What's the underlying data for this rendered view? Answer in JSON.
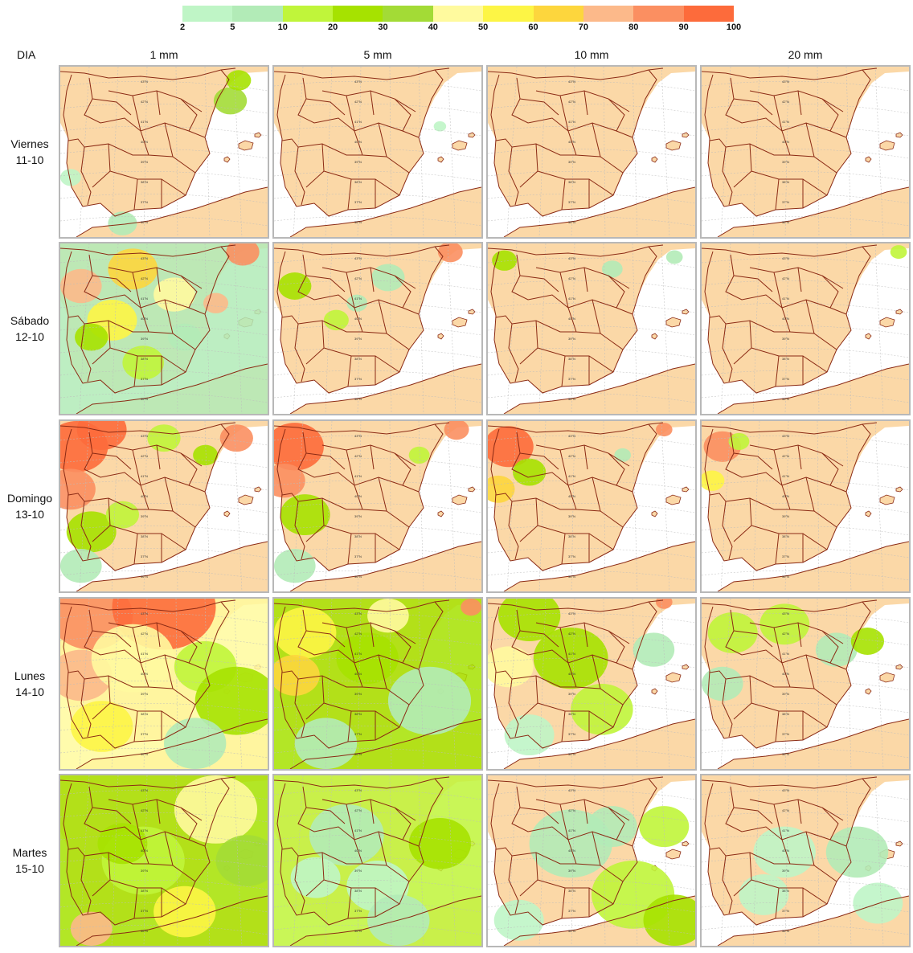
{
  "legend": {
    "colors": [
      "#bff5c6",
      "#b2ebb7",
      "#c0f53a",
      "#a6e200",
      "#a3db36",
      "#fffa9e",
      "#fdf545",
      "#fdd63d",
      "#fcb98a",
      "#fb8f61",
      "#fd6b3b"
    ],
    "ticks": [
      "2",
      "5",
      "10",
      "20",
      "30",
      "40",
      "50",
      "60",
      "70",
      "80",
      "90",
      "100"
    ]
  },
  "header": {
    "corner": "DIA"
  },
  "columns": [
    {
      "label": "1 mm"
    },
    {
      "label": "5 mm"
    },
    {
      "label": "10 mm"
    },
    {
      "label": "20 mm"
    }
  ],
  "rows": [
    {
      "day": "Viernes",
      "date": "11-10"
    },
    {
      "day": "Sábado",
      "date": "12-10"
    },
    {
      "day": "Domingo",
      "date": "13-10"
    },
    {
      "day": "Lunes",
      "date": "14-10"
    },
    {
      "day": "Martes",
      "date": "15-10"
    }
  ],
  "map": {
    "land_color": "#fbd8a7",
    "border_color": "#8b2a14",
    "grid_color": "#bdbdbd",
    "lat_labels": [
      "43°N",
      "42°N",
      "41°N",
      "40°N",
      "39°N",
      "38°N",
      "37°N",
      "36°N"
    ]
  },
  "cells": [
    [
      {
        "base": 0,
        "blobs": [
          [
            0.82,
            0.2,
            0.08,
            5
          ],
          [
            0.86,
            0.08,
            0.06,
            4
          ],
          [
            0.3,
            0.92,
            0.07,
            2
          ],
          [
            0.05,
            0.65,
            0.05,
            1
          ]
        ]
      },
      {
        "base": 0,
        "blobs": [
          [
            0.8,
            0.35,
            0.03,
            1
          ]
        ]
      },
      {
        "base": 0,
        "blobs": []
      },
      {
        "base": 0,
        "blobs": []
      }
    ],
    [
      {
        "base": 2,
        "blobs": [
          [
            0.1,
            0.25,
            0.1,
            9
          ],
          [
            0.35,
            0.15,
            0.12,
            8
          ],
          [
            0.25,
            0.45,
            0.12,
            7
          ],
          [
            0.55,
            0.3,
            0.1,
            6
          ],
          [
            0.75,
            0.35,
            0.06,
            9
          ],
          [
            0.88,
            0.05,
            0.08,
            10
          ],
          [
            0.4,
            0.7,
            0.1,
            3
          ],
          [
            0.15,
            0.55,
            0.08,
            4
          ],
          [
            0.6,
            0.55,
            0.08,
            2
          ]
        ]
      },
      {
        "base": 0,
        "blobs": [
          [
            0.1,
            0.25,
            0.08,
            4
          ],
          [
            0.3,
            0.45,
            0.06,
            3
          ],
          [
            0.55,
            0.2,
            0.08,
            2
          ],
          [
            0.85,
            0.05,
            0.06,
            10
          ],
          [
            0.4,
            0.35,
            0.05,
            2
          ]
        ]
      },
      {
        "base": 0,
        "blobs": [
          [
            0.08,
            0.1,
            0.06,
            4
          ],
          [
            0.6,
            0.15,
            0.05,
            2
          ],
          [
            0.9,
            0.08,
            0.04,
            2
          ]
        ]
      },
      {
        "base": 0,
        "blobs": [
          [
            0.95,
            0.05,
            0.04,
            3
          ]
        ]
      }
    ],
    [
      {
        "base": 0,
        "blobs": [
          [
            0.08,
            0.15,
            0.15,
            11
          ],
          [
            0.2,
            0.05,
            0.12,
            11
          ],
          [
            0.05,
            0.4,
            0.12,
            10
          ],
          [
            0.15,
            0.65,
            0.12,
            4
          ],
          [
            0.3,
            0.55,
            0.08,
            3
          ],
          [
            0.85,
            0.1,
            0.08,
            10
          ],
          [
            0.7,
            0.2,
            0.06,
            4
          ],
          [
            0.5,
            0.1,
            0.08,
            3
          ],
          [
            0.1,
            0.85,
            0.1,
            2
          ]
        ]
      },
      {
        "base": 0,
        "blobs": [
          [
            0.1,
            0.15,
            0.14,
            11
          ],
          [
            0.05,
            0.35,
            0.1,
            10
          ],
          [
            0.15,
            0.55,
            0.12,
            4
          ],
          [
            0.7,
            0.2,
            0.05,
            3
          ],
          [
            0.88,
            0.05,
            0.06,
            10
          ],
          [
            0.1,
            0.85,
            0.1,
            2
          ]
        ]
      },
      {
        "base": 0,
        "blobs": [
          [
            0.1,
            0.15,
            0.12,
            11
          ],
          [
            0.05,
            0.4,
            0.08,
            8
          ],
          [
            0.2,
            0.3,
            0.08,
            4
          ],
          [
            0.65,
            0.2,
            0.04,
            2
          ],
          [
            0.85,
            0.05,
            0.04,
            10
          ]
        ]
      },
      {
        "base": 0,
        "blobs": [
          [
            0.1,
            0.15,
            0.09,
            10
          ],
          [
            0.05,
            0.35,
            0.06,
            7
          ],
          [
            0.18,
            0.12,
            0.05,
            3
          ]
        ]
      }
    ],
    [
      {
        "base": 6,
        "blobs": [
          [
            0.15,
            0.1,
            0.2,
            10
          ],
          [
            0.5,
            0.05,
            0.25,
            11
          ],
          [
            0.1,
            0.45,
            0.15,
            9
          ],
          [
            0.35,
            0.35,
            0.2,
            6
          ],
          [
            0.7,
            0.4,
            0.15,
            3
          ],
          [
            0.85,
            0.6,
            0.2,
            4
          ],
          [
            0.65,
            0.85,
            0.15,
            2
          ],
          [
            0.2,
            0.75,
            0.15,
            7
          ]
        ]
      },
      {
        "base": 4,
        "blobs": [
          [
            0.15,
            0.2,
            0.15,
            7
          ],
          [
            0.1,
            0.45,
            0.12,
            8
          ],
          [
            0.55,
            0.1,
            0.1,
            6
          ],
          [
            0.45,
            0.35,
            0.15,
            4
          ],
          [
            0.75,
            0.6,
            0.2,
            2
          ],
          [
            0.25,
            0.85,
            0.15,
            2
          ],
          [
            0.95,
            0.05,
            0.05,
            10
          ]
        ]
      },
      {
        "base": 0,
        "blobs": [
          [
            0.2,
            0.1,
            0.15,
            4
          ],
          [
            0.1,
            0.4,
            0.12,
            6
          ],
          [
            0.4,
            0.35,
            0.18,
            4
          ],
          [
            0.55,
            0.65,
            0.15,
            3
          ],
          [
            0.8,
            0.3,
            0.1,
            2
          ],
          [
            0.2,
            0.8,
            0.12,
            1
          ],
          [
            0.85,
            0.02,
            0.04,
            10
          ]
        ]
      },
      {
        "base": 0,
        "blobs": [
          [
            0.15,
            0.2,
            0.12,
            3
          ],
          [
            0.4,
            0.15,
            0.12,
            3
          ],
          [
            0.65,
            0.3,
            0.1,
            2
          ],
          [
            0.8,
            0.25,
            0.08,
            4
          ],
          [
            0.1,
            0.5,
            0.1,
            2
          ]
        ]
      }
    ],
    [
      {
        "base": 4,
        "blobs": [
          [
            0.4,
            0.5,
            0.2,
            3
          ],
          [
            0.75,
            0.2,
            0.2,
            6
          ],
          [
            0.9,
            0.5,
            0.15,
            5
          ],
          [
            0.6,
            0.8,
            0.15,
            7
          ],
          [
            0.15,
            0.9,
            0.1,
            9
          ],
          [
            0.3,
            0.4,
            0.12,
            4
          ]
        ]
      },
      {
        "base": 3,
        "blobs": [
          [
            0.35,
            0.35,
            0.18,
            2
          ],
          [
            0.5,
            0.65,
            0.15,
            1
          ],
          [
            0.8,
            0.4,
            0.15,
            4
          ],
          [
            0.6,
            0.85,
            0.15,
            2
          ],
          [
            0.2,
            0.6,
            0.12,
            1
          ]
        ]
      },
      {
        "base": 0,
        "blobs": [
          [
            0.4,
            0.4,
            0.2,
            2
          ],
          [
            0.7,
            0.7,
            0.2,
            3
          ],
          [
            0.9,
            0.85,
            0.15,
            4
          ],
          [
            0.15,
            0.85,
            0.12,
            1
          ],
          [
            0.6,
            0.3,
            0.12,
            2
          ],
          [
            0.85,
            0.3,
            0.12,
            3
          ]
        ]
      },
      {
        "base": 0,
        "blobs": [
          [
            0.4,
            0.45,
            0.15,
            1
          ],
          [
            0.75,
            0.45,
            0.15,
            2
          ],
          [
            0.3,
            0.7,
            0.12,
            1
          ],
          [
            0.85,
            0.75,
            0.12,
            1
          ]
        ]
      }
    ]
  ]
}
